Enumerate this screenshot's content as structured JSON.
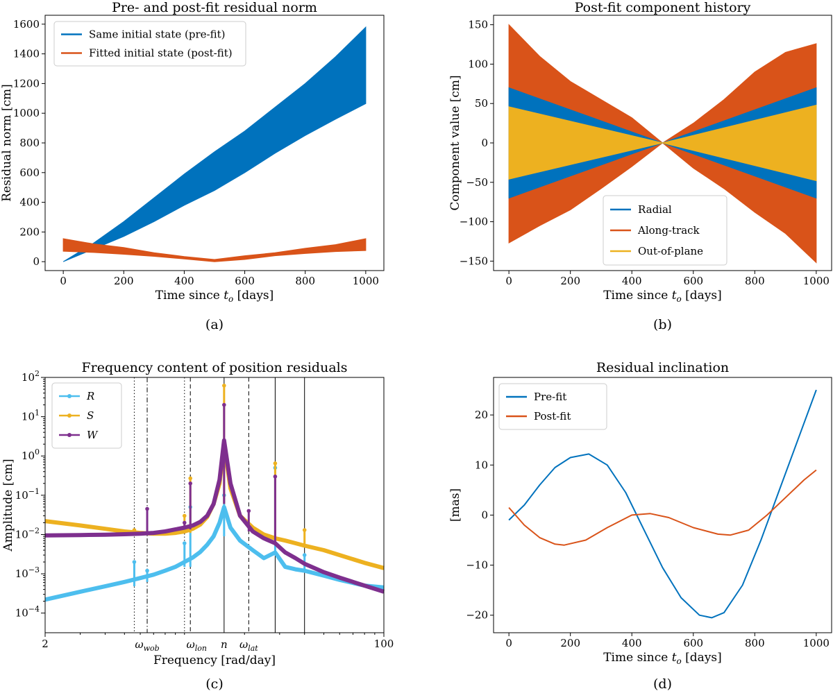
{
  "chart_data": [
    {
      "id": "a",
      "type": "area",
      "title": "Pre- and post-fit residual norm",
      "xlabel_main": "Time since ",
      "xlabel_sym": "t",
      "xlabel_sub": "o",
      "xlabel_unit": " [days]",
      "ylabel": "Residual norm [cm]",
      "caption": "(a)",
      "xlim": [
        -60,
        1060
      ],
      "ylim": [
        -60,
        1660
      ],
      "xticks": [
        0,
        200,
        400,
        600,
        800,
        1000
      ],
      "yticks": [
        0,
        200,
        400,
        600,
        800,
        1000,
        1200,
        1400,
        1600
      ],
      "legend_position": "top-left",
      "series": [
        {
          "name": "Same initial state (pre-fit)",
          "color": "#0072BD",
          "x": [
            0,
            100,
            200,
            300,
            400,
            500,
            600,
            700,
            800,
            900,
            1000
          ],
          "upper": [
            0,
            125,
            270,
            430,
            590,
            740,
            880,
            1040,
            1200,
            1380,
            1580
          ],
          "lower": [
            0,
            85,
            170,
            270,
            380,
            480,
            600,
            730,
            850,
            960,
            1065
          ]
        },
        {
          "name": "Fitted initial state (post-fit)",
          "color": "#D95319",
          "x": [
            0,
            100,
            200,
            300,
            400,
            500,
            600,
            700,
            800,
            900,
            1000
          ],
          "upper": [
            155,
            120,
            95,
            60,
            35,
            15,
            40,
            60,
            90,
            115,
            155
          ],
          "lower": [
            70,
            62,
            50,
            36,
            18,
            0,
            15,
            40,
            55,
            68,
            75
          ]
        }
      ]
    },
    {
      "id": "b",
      "type": "area",
      "title": "Post-fit component history",
      "xlabel_main": "Time since ",
      "xlabel_sym": "t",
      "xlabel_sub": "o",
      "xlabel_unit": " [days]",
      "ylabel": "Component value [cm]",
      "caption": "(b)",
      "xlim": [
        -50,
        1050
      ],
      "ylim": [
        -162,
        162
      ],
      "xticks": [
        0,
        200,
        400,
        600,
        800,
        1000
      ],
      "yticks": [
        -150,
        -100,
        -50,
        0,
        50,
        100,
        150
      ],
      "legend_position": "bottom-center",
      "series": [
        {
          "name": "Along-track",
          "color": "#D95319",
          "x": [
            0,
            100,
            200,
            300,
            400,
            500,
            600,
            700,
            800,
            900,
            1000
          ],
          "upper": [
            150,
            110,
            78,
            55,
            32,
            0,
            25,
            55,
            90,
            115,
            126
          ],
          "lower": [
            -127,
            -105,
            -85,
            -58,
            -30,
            0,
            -32,
            -58,
            -88,
            -115,
            -152
          ]
        },
        {
          "name": "Radial",
          "color": "#0072BD",
          "x": [
            0,
            500,
            1000
          ],
          "upper": [
            70,
            0,
            70
          ],
          "lower": [
            -70,
            0,
            -70
          ]
        },
        {
          "name": "Out-of-plane",
          "color": "#EDB120",
          "x": [
            0,
            500,
            1000
          ],
          "upper": [
            46,
            0,
            48
          ],
          "lower": [
            -46,
            0,
            -48
          ]
        }
      ],
      "legend_order": [
        "Radial",
        "Along-track",
        "Out-of-plane"
      ]
    },
    {
      "id": "c",
      "type": "line",
      "title": "Frequency content of position residuals",
      "xlabel": "Frequency [rad/day]",
      "ylabel": "Amplitude [cm]",
      "caption": "(c)",
      "xscale": "log",
      "yscale": "log",
      "xlim": [
        2,
        100
      ],
      "ylim_exp": [
        -4.5,
        2
      ],
      "xtick_labels": [
        "2",
        "100"
      ],
      "yticks_exp": [
        -4,
        -3,
        -2,
        -1,
        0,
        1,
        2
      ],
      "ytick_base": "10",
      "legend_position": "top-left",
      "marker_labels": [
        {
          "sym": "ω",
          "sub": "wob",
          "x": 6.5
        },
        {
          "sym": "ω",
          "sub": "lon",
          "x": 11.5
        },
        {
          "sym": "n",
          "sub": "",
          "x": 15.8
        },
        {
          "sym": "ω",
          "sub": "lat",
          "x": 21.0
        }
      ],
      "vlines": [
        {
          "x": 5.6,
          "style": "dotted"
        },
        {
          "x": 6.5,
          "style": "dashdot"
        },
        {
          "x": 10.0,
          "style": "dotted"
        },
        {
          "x": 10.7,
          "style": "dashed"
        },
        {
          "x": 15.8,
          "style": "solid"
        },
        {
          "x": 21.0,
          "style": "dashed"
        },
        {
          "x": 28.5,
          "style": "solid"
        },
        {
          "x": 40.0,
          "style": "solid"
        }
      ],
      "series": [
        {
          "name": "R",
          "color": "#4DBEEE",
          "x": [
            2,
            3,
            4,
            5,
            6,
            7,
            8,
            9,
            10,
            11,
            12,
            13,
            14,
            15,
            15.8,
            17,
            19,
            22,
            25,
            28.5,
            32,
            36,
            40,
            50,
            60,
            80,
            100
          ],
          "y": [
            0.00022,
            0.00035,
            0.00048,
            0.00062,
            0.00078,
            0.00095,
            0.0012,
            0.0015,
            0.002,
            0.0026,
            0.0036,
            0.0055,
            0.009,
            0.02,
            0.05,
            0.015,
            0.007,
            0.004,
            0.0025,
            0.0035,
            0.0015,
            0.0013,
            0.0012,
            0.0009,
            0.0007,
            0.0005,
            0.00045
          ],
          "spikes": [
            [
              5.6,
              0.002
            ],
            [
              6.5,
              0.0012
            ],
            [
              10.0,
              0.006
            ],
            [
              10.7,
              0.05
            ],
            [
              15.8,
              0.1
            ],
            [
              28.5,
              0.5
            ],
            [
              40.0,
              0.003
            ]
          ]
        },
        {
          "name": "S",
          "color": "#EDB120",
          "x": [
            2,
            3,
            4,
            5,
            6,
            7,
            8,
            9,
            10,
            11,
            12,
            13,
            14,
            15,
            15.8,
            17,
            19,
            22,
            25,
            28.5,
            32,
            36,
            40,
            50,
            60,
            80,
            100
          ],
          "y": [
            0.022,
            0.017,
            0.014,
            0.012,
            0.011,
            0.0105,
            0.0105,
            0.011,
            0.012,
            0.014,
            0.018,
            0.028,
            0.06,
            0.2,
            2.0,
            0.15,
            0.03,
            0.015,
            0.01,
            0.008,
            0.007,
            0.006,
            0.0052,
            0.004,
            0.003,
            0.0019,
            0.0014
          ],
          "spikes": [
            [
              5.6,
              0.013
            ],
            [
              10.0,
              0.03
            ],
            [
              10.7,
              0.27
            ],
            [
              15.8,
              62
            ],
            [
              28.5,
              0.65
            ],
            [
              40.0,
              0.013
            ]
          ]
        },
        {
          "name": "W",
          "color": "#7E2F8E",
          "x": [
            2,
            3,
            4,
            5,
            6,
            7,
            8,
            9,
            10,
            11,
            12,
            13,
            14,
            15,
            15.8,
            17,
            19,
            22,
            25,
            28.5,
            32,
            36,
            40,
            50,
            60,
            80,
            100
          ],
          "y": [
            0.0095,
            0.0097,
            0.0099,
            0.0102,
            0.0105,
            0.011,
            0.012,
            0.0135,
            0.015,
            0.017,
            0.021,
            0.03,
            0.06,
            0.25,
            2.5,
            0.2,
            0.03,
            0.012,
            0.008,
            0.006,
            0.0035,
            0.0025,
            0.0018,
            0.0011,
            0.0008,
            0.0005,
            0.00035
          ],
          "spikes": [
            [
              6.5,
              0.045
            ],
            [
              10.0,
              0.02
            ],
            [
              10.7,
              0.2
            ],
            [
              15.8,
              20
            ],
            [
              21.0,
              0.04
            ],
            [
              28.5,
              0.3
            ]
          ]
        }
      ]
    },
    {
      "id": "d",
      "type": "line",
      "title": "Residual inclination",
      "xlabel_main": "Time since ",
      "xlabel_sym": "t",
      "xlabel_sub": "o",
      "xlabel_unit": " [days]",
      "ylabel": "[mas]",
      "caption": "(d)",
      "xlim": [
        -50,
        1050
      ],
      "ylim": [
        -23.5,
        27.5
      ],
      "xticks": [
        0,
        200,
        400,
        600,
        800,
        1000
      ],
      "yticks": [
        -20,
        -10,
        0,
        10,
        20
      ],
      "ytick_labels": [
        "−20",
        "−10",
        "0",
        "10",
        "20"
      ],
      "legend_position": "top-left",
      "series": [
        {
          "name": "Pre-fit",
          "color": "#0072BD",
          "x": [
            0,
            50,
            100,
            150,
            200,
            260,
            320,
            380,
            440,
            500,
            560,
            620,
            660,
            700,
            760,
            820,
            880,
            940,
            1000
          ],
          "y": [
            -1,
            2,
            6,
            9.5,
            11.5,
            12.2,
            10,
            4.5,
            -3,
            -10.5,
            -16.5,
            -20,
            -20.5,
            -19.5,
            -14,
            -5,
            5,
            15,
            25
          ]
        },
        {
          "name": "Post-fit",
          "color": "#D95319",
          "x": [
            0,
            50,
            100,
            150,
            180,
            250,
            320,
            400,
            460,
            520,
            600,
            680,
            720,
            780,
            840,
            900,
            960,
            1000
          ],
          "y": [
            1.5,
            -2,
            -4.5,
            -5.8,
            -6,
            -5,
            -2.5,
            0,
            0.3,
            -0.5,
            -2.5,
            -3.8,
            -4,
            -3,
            0,
            3.5,
            7,
            9
          ]
        }
      ]
    }
  ]
}
